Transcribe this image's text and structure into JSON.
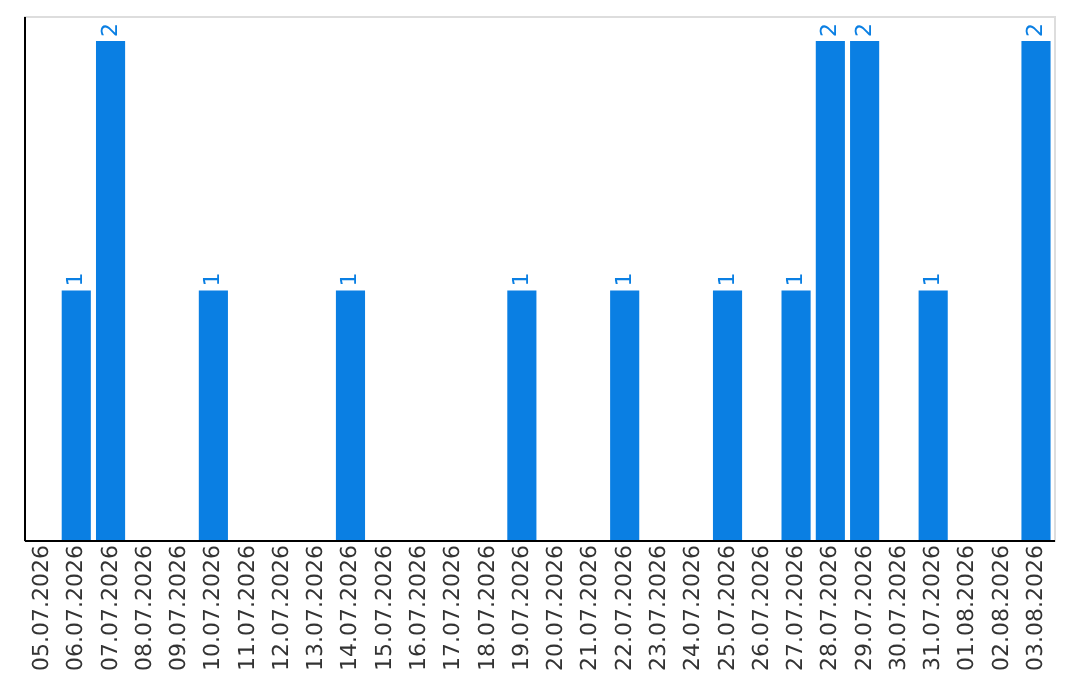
{
  "chart_data": {
    "type": "bar",
    "categories": [
      "05.07.2026",
      "06.07.2026",
      "07.07.2026",
      "08.07.2026",
      "09.07.2026",
      "10.07.2026",
      "11.07.2026",
      "12.07.2026",
      "13.07.2026",
      "14.07.2026",
      "15.07.2026",
      "16.07.2026",
      "17.07.2026",
      "18.07.2026",
      "19.07.2026",
      "20.07.2026",
      "21.07.2026",
      "22.07.2026",
      "23.07.2026",
      "24.07.2026",
      "25.07.2026",
      "26.07.2026",
      "27.07.2026",
      "28.07.2026",
      "29.07.2026",
      "30.07.2026",
      "31.07.2026",
      "01.08.2026",
      "02.08.2026",
      "03.08.2026"
    ],
    "values": [
      0,
      1,
      2,
      0,
      0,
      1,
      0,
      0,
      0,
      1,
      0,
      0,
      0,
      0,
      1,
      0,
      0,
      1,
      0,
      0,
      1,
      0,
      1,
      2,
      2,
      0,
      1,
      0,
      0,
      2
    ],
    "value_labels": [
      null,
      "1",
      "2",
      null,
      null,
      "1",
      null,
      null,
      null,
      "1",
      null,
      null,
      null,
      null,
      "1",
      null,
      null,
      "1",
      null,
      null,
      "1",
      null,
      "1",
      "2",
      "2",
      null,
      "1",
      null,
      null,
      "2"
    ],
    "color": "#0a7fe3",
    "tick_labels": "x"
  }
}
